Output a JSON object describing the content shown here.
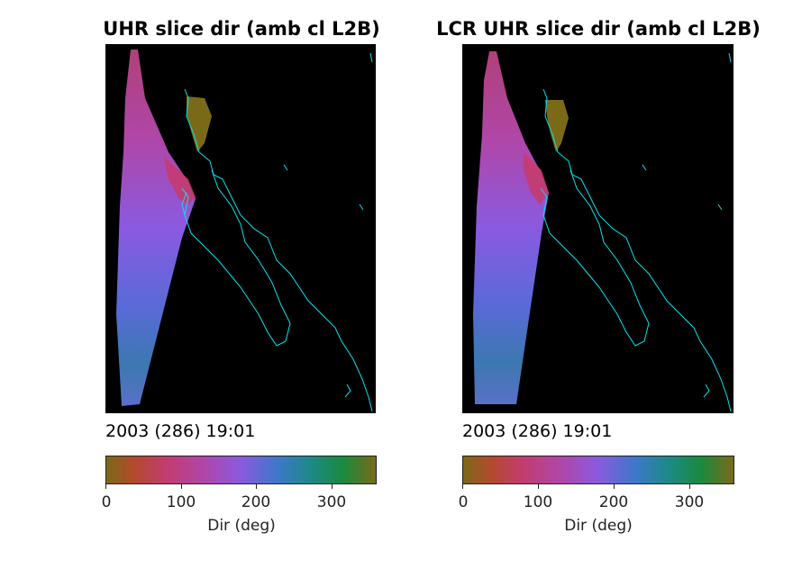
{
  "panels": [
    {
      "title": "UHR slice dir (amb cl L2B)",
      "timestamp": "2003 (286) 19:01",
      "colorbar": {
        "label": "Dir (deg)",
        "ticks": [
          "0",
          "100",
          "200",
          "300"
        ],
        "range": [
          0,
          360
        ]
      }
    },
    {
      "title": "LCR UHR slice dir (amb cl L2B)",
      "timestamp": "2003 (286) 19:01",
      "colorbar": {
        "label": "Dir (deg)",
        "ticks": [
          "0",
          "100",
          "200",
          "300"
        ],
        "range": [
          0,
          360
        ]
      }
    }
  ],
  "colors": {
    "coastline": "#00e5ee",
    "map_background": "#000000",
    "colormap": [
      "#7a6a18",
      "#b24a2c",
      "#c23c6e",
      "#b046a8",
      "#8a5ae0",
      "#3c78c8",
      "#1c8a86",
      "#1a8a3e",
      "#7a6a18"
    ]
  }
}
